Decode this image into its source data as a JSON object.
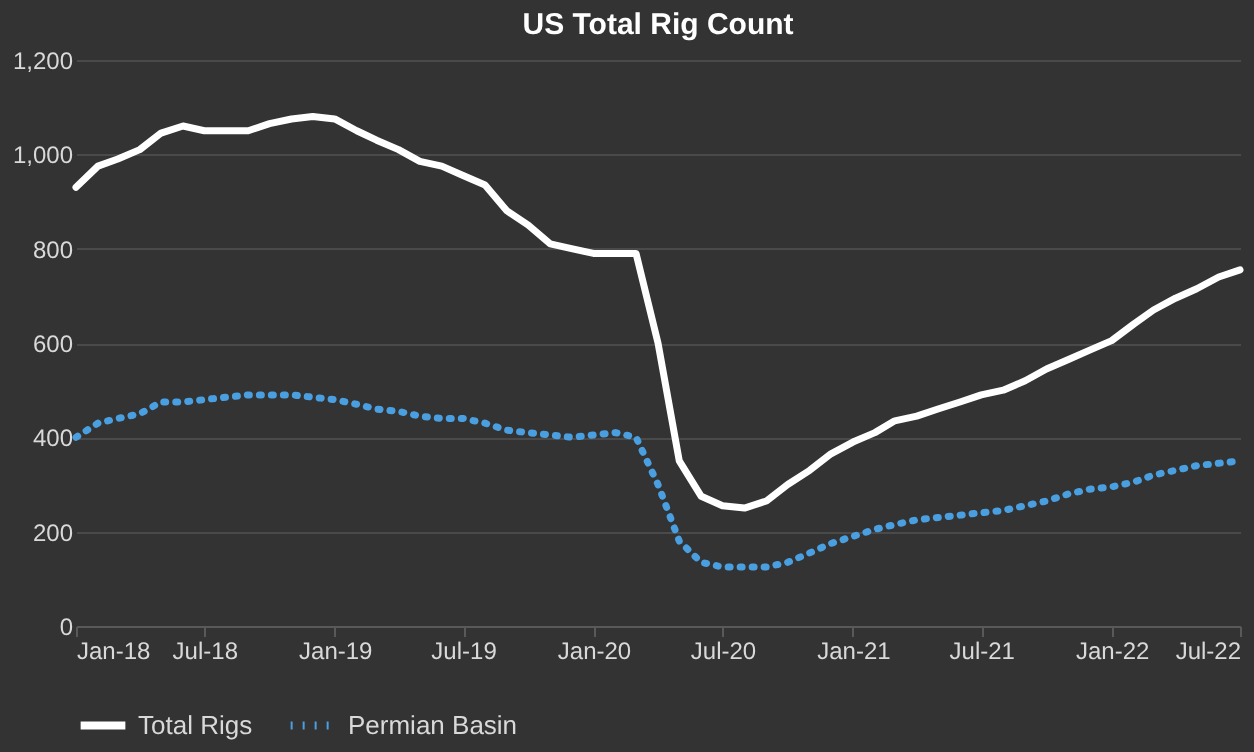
{
  "chart_data": {
    "type": "line",
    "title": "US Total Rig Count",
    "x": [
      "2018-01",
      "2018-02",
      "2018-03",
      "2018-04",
      "2018-05",
      "2018-06",
      "2018-07",
      "2018-08",
      "2018-09",
      "2018-10",
      "2018-11",
      "2018-12",
      "2019-01",
      "2019-02",
      "2019-03",
      "2019-04",
      "2019-05",
      "2019-06",
      "2019-07",
      "2019-08",
      "2019-09",
      "2019-10",
      "2019-11",
      "2019-12",
      "2020-01",
      "2020-02",
      "2020-03",
      "2020-04",
      "2020-05",
      "2020-06",
      "2020-07",
      "2020-08",
      "2020-09",
      "2020-10",
      "2020-11",
      "2020-12",
      "2021-01",
      "2021-02",
      "2021-03",
      "2021-04",
      "2021-05",
      "2021-06",
      "2021-07",
      "2021-08",
      "2021-09",
      "2021-10",
      "2021-11",
      "2021-12",
      "2022-01",
      "2022-02",
      "2022-03",
      "2022-04",
      "2022-05",
      "2022-06",
      "2022-07"
    ],
    "series": [
      {
        "name": "Total Rigs",
        "color": "#ffffff",
        "line_style": "solid",
        "values": [
          930,
          975,
          990,
          1010,
          1045,
          1060,
          1050,
          1050,
          1050,
          1065,
          1075,
          1080,
          1075,
          1050,
          1030,
          1010,
          985,
          975,
          955,
          935,
          880,
          850,
          810,
          800,
          790,
          790,
          790,
          600,
          350,
          275,
          255,
          250,
          265,
          300,
          330,
          365,
          390,
          410,
          435,
          445,
          460,
          475,
          490,
          500,
          520,
          545,
          565,
          585,
          605,
          640,
          670,
          695,
          715,
          740,
          755
        ]
      },
      {
        "name": "Permian Basin",
        "color": "#4a9fe0",
        "line_style": "dotted",
        "values": [
          400,
          430,
          440,
          450,
          475,
          475,
          480,
          485,
          490,
          490,
          490,
          485,
          480,
          470,
          460,
          455,
          445,
          440,
          440,
          430,
          415,
          410,
          405,
          400,
          405,
          410,
          400,
          300,
          180,
          135,
          125,
          125,
          125,
          135,
          155,
          175,
          190,
          205,
          215,
          225,
          230,
          235,
          240,
          245,
          255,
          265,
          280,
          290,
          295,
          305,
          320,
          330,
          340,
          345,
          350
        ]
      }
    ],
    "xlim": [
      "2018-01",
      "2022-07"
    ],
    "xticks": [
      {
        "value": "2018-01",
        "label": "Jan-18"
      },
      {
        "value": "2018-07",
        "label": "Jul-18"
      },
      {
        "value": "2019-01",
        "label": "Jan-19"
      },
      {
        "value": "2019-07",
        "label": "Jul-19"
      },
      {
        "value": "2020-01",
        "label": "Jan-20"
      },
      {
        "value": "2020-07",
        "label": "Jul-20"
      },
      {
        "value": "2021-01",
        "label": "Jan-21"
      },
      {
        "value": "2021-07",
        "label": "Jul-21"
      },
      {
        "value": "2022-01",
        "label": "Jan-22"
      },
      {
        "value": "2022-07",
        "label": "Jul-22"
      }
    ],
    "ylim": [
      0,
      1200
    ],
    "yticks": [
      {
        "value": 0,
        "label": "0"
      },
      {
        "value": 200,
        "label": "200"
      },
      {
        "value": 400,
        "label": "400"
      },
      {
        "value": 600,
        "label": "600"
      },
      {
        "value": 800,
        "label": "800"
      },
      {
        "value": 1000,
        "label": "1,000"
      },
      {
        "value": 1200,
        "label": "1,200"
      }
    ],
    "grid": "y",
    "legend": "bottom"
  }
}
